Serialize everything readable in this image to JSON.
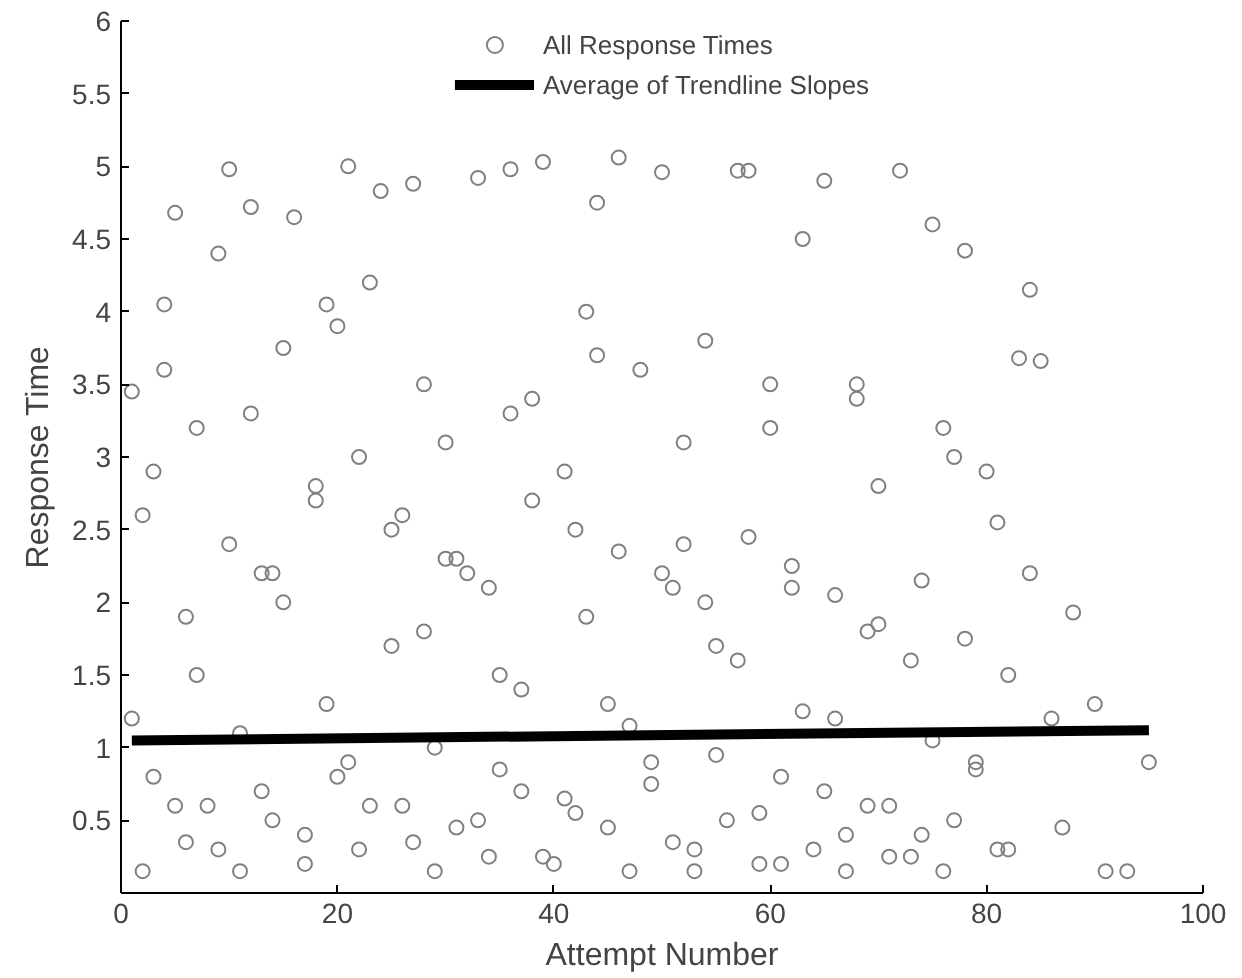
{
  "chart_data": {
    "type": "scatter",
    "xlabel": "Attempt Number",
    "ylabel": "Response Time",
    "xlim": [
      0,
      100
    ],
    "ylim": [
      0,
      6
    ],
    "xticks": [
      0,
      20,
      40,
      60,
      80,
      100
    ],
    "yticks": [
      0.5,
      1,
      1.5,
      2,
      2.5,
      3,
      3.5,
      4,
      4.5,
      5,
      5.5,
      6
    ],
    "grid": false,
    "legend": "top",
    "series": [
      {
        "name": "All Response Times",
        "color": "#808080",
        "marker": "circle",
        "x": [
          1,
          2,
          3,
          4,
          5,
          6,
          7,
          8,
          9,
          10,
          11,
          12,
          13,
          14,
          15,
          16,
          17,
          18,
          19,
          20,
          21,
          22,
          23,
          24,
          25,
          26,
          27,
          28,
          29,
          30,
          31,
          32,
          33,
          34,
          35,
          36,
          37,
          38,
          39,
          40,
          41,
          42,
          43,
          44,
          45,
          46,
          47,
          48,
          49,
          50,
          51,
          52,
          53,
          54,
          55,
          56,
          57,
          58,
          59,
          60,
          61,
          62,
          63,
          64,
          65,
          66,
          67,
          68,
          69,
          70,
          71,
          72,
          73,
          74,
          75,
          76,
          77,
          78,
          79,
          80,
          81,
          82,
          83,
          84,
          85,
          86,
          87,
          88,
          90,
          91,
          93,
          95,
          1,
          3,
          5,
          7,
          9,
          11,
          13,
          15,
          17,
          19,
          21,
          23,
          25,
          27,
          29,
          31,
          33,
          35,
          37,
          39,
          41,
          43,
          45,
          47,
          49,
          51,
          53,
          55,
          57,
          59,
          61,
          63,
          65,
          67,
          69,
          71,
          73,
          75,
          77,
          79,
          81,
          2,
          6,
          10,
          14,
          18,
          22,
          26,
          30,
          34,
          38,
          42,
          46,
          50,
          54,
          58,
          62,
          66,
          70,
          74,
          78,
          82,
          4,
          12,
          20,
          28,
          36,
          44,
          52,
          60,
          68,
          76,
          84
        ],
        "values": [
          3.45,
          0.15,
          2.9,
          4.05,
          4.68,
          0.35,
          3.2,
          0.6,
          4.4,
          4.98,
          0.15,
          4.72,
          2.2,
          0.5,
          3.75,
          4.65,
          0.2,
          2.7,
          4.05,
          0.8,
          5.0,
          0.3,
          4.2,
          4.83,
          2.5,
          0.6,
          4.88,
          1.8,
          0.15,
          3.1,
          0.45,
          2.2,
          4.92,
          0.25,
          1.5,
          4.98,
          0.7,
          3.4,
          5.03,
          0.2,
          2.9,
          0.55,
          4.0,
          4.75,
          1.3,
          5.06,
          0.15,
          3.6,
          0.9,
          4.96,
          0.35,
          2.4,
          0.15,
          3.8,
          1.7,
          0.5,
          4.97,
          4.97,
          0.2,
          3.2,
          0.8,
          2.1,
          4.5,
          0.3,
          4.9,
          1.2,
          0.15,
          3.5,
          0.6,
          2.8,
          0.25,
          4.97,
          1.6,
          0.4,
          4.6,
          0.15,
          3.0,
          4.42,
          0.9,
          2.9,
          2.55,
          0.3,
          3.68,
          4.15,
          3.66,
          1.2,
          0.45,
          1.93,
          1.3,
          0.15,
          0.15,
          0.9,
          1.2,
          0.8,
          0.6,
          1.5,
          0.3,
          1.1,
          0.7,
          2.0,
          0.4,
          1.3,
          0.9,
          0.6,
          1.7,
          0.35,
          1.0,
          2.3,
          0.5,
          0.85,
          1.4,
          0.25,
          0.65,
          1.9,
          0.45,
          1.15,
          0.75,
          2.1,
          0.3,
          0.95,
          1.6,
          0.55,
          0.2,
          1.25,
          0.7,
          0.4,
          1.8,
          0.6,
          0.25,
          1.05,
          0.5,
          0.85,
          0.3,
          2.6,
          1.9,
          2.4,
          2.2,
          2.8,
          3.0,
          2.6,
          2.3,
          2.1,
          2.7,
          2.5,
          2.35,
          2.2,
          2.0,
          2.45,
          2.25,
          2.05,
          1.85,
          2.15,
          1.75,
          1.5,
          3.6,
          3.3,
          3.9,
          3.5,
          3.3,
          3.7,
          3.1,
          3.5,
          3.4,
          3.2,
          2.2
        ]
      },
      {
        "name": "Average of Trendline Slopes",
        "color": "#000000",
        "type": "line",
        "x": [
          1,
          95
        ],
        "values": [
          1.05,
          1.12
        ]
      }
    ]
  }
}
